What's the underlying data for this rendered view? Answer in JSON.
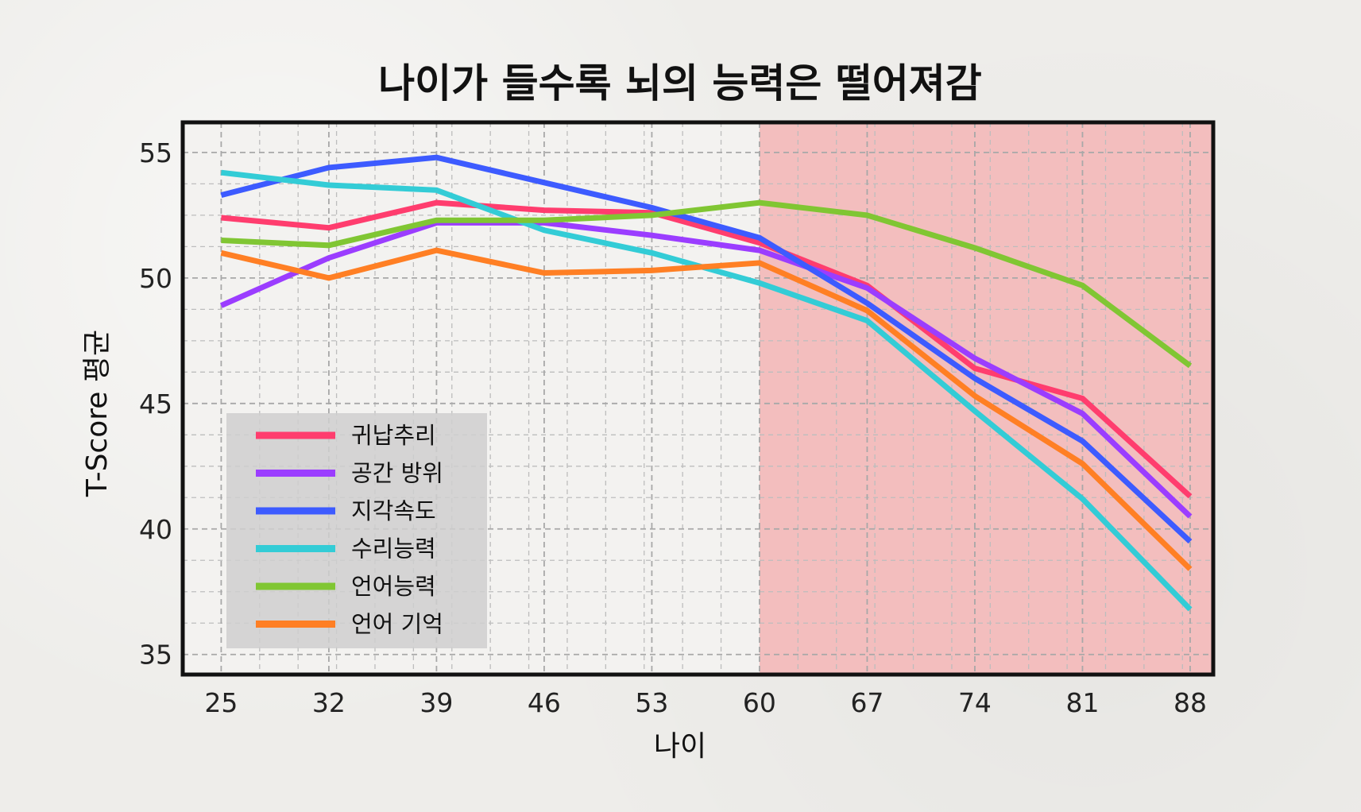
{
  "chart_data": {
    "type": "line",
    "title": "나이가 들수록 뇌의 능력은 떨어져감",
    "xlabel": "나이",
    "ylabel": "T-Score 평균",
    "x": [
      25,
      32,
      39,
      46,
      53,
      60,
      67,
      74,
      81,
      88
    ],
    "xlim": [
      22.5,
      89.5
    ],
    "ylim": [
      34.2,
      56.2
    ],
    "yticks": [
      35,
      40,
      45,
      50,
      55
    ],
    "grid": true,
    "legend_position": "lower-left",
    "highlight_region": {
      "x_from": 60,
      "x_to": 89.5,
      "color": "#f2b5b5"
    },
    "series": [
      {
        "name": "귀납추리",
        "color": "#ff3d6e",
        "values": [
          52.4,
          52.0,
          53.0,
          52.7,
          52.6,
          51.4,
          49.7,
          46.4,
          45.2,
          41.3
        ]
      },
      {
        "name": "공간 방위",
        "color": "#9b3dff",
        "values": [
          48.9,
          50.8,
          52.2,
          52.2,
          51.7,
          51.1,
          49.6,
          46.8,
          44.6,
          40.5
        ]
      },
      {
        "name": "지각속도",
        "color": "#3d5bff",
        "values": [
          53.3,
          54.4,
          54.8,
          53.8,
          52.8,
          51.6,
          49.0,
          46.0,
          43.5,
          39.5
        ]
      },
      {
        "name": "수리능력",
        "color": "#33ccd6",
        "values": [
          54.2,
          53.7,
          53.5,
          51.9,
          51.0,
          49.8,
          48.3,
          44.7,
          41.2,
          36.8
        ]
      },
      {
        "name": "언어능력",
        "color": "#80c633",
        "values": [
          51.5,
          51.3,
          52.3,
          52.3,
          52.5,
          53.0,
          52.5,
          51.2,
          49.7,
          46.5
        ]
      },
      {
        "name": "언어 기억",
        "color": "#ff7f24",
        "values": [
          51.0,
          50.0,
          51.1,
          50.2,
          50.3,
          50.6,
          48.7,
          45.3,
          42.6,
          38.4
        ]
      }
    ]
  }
}
